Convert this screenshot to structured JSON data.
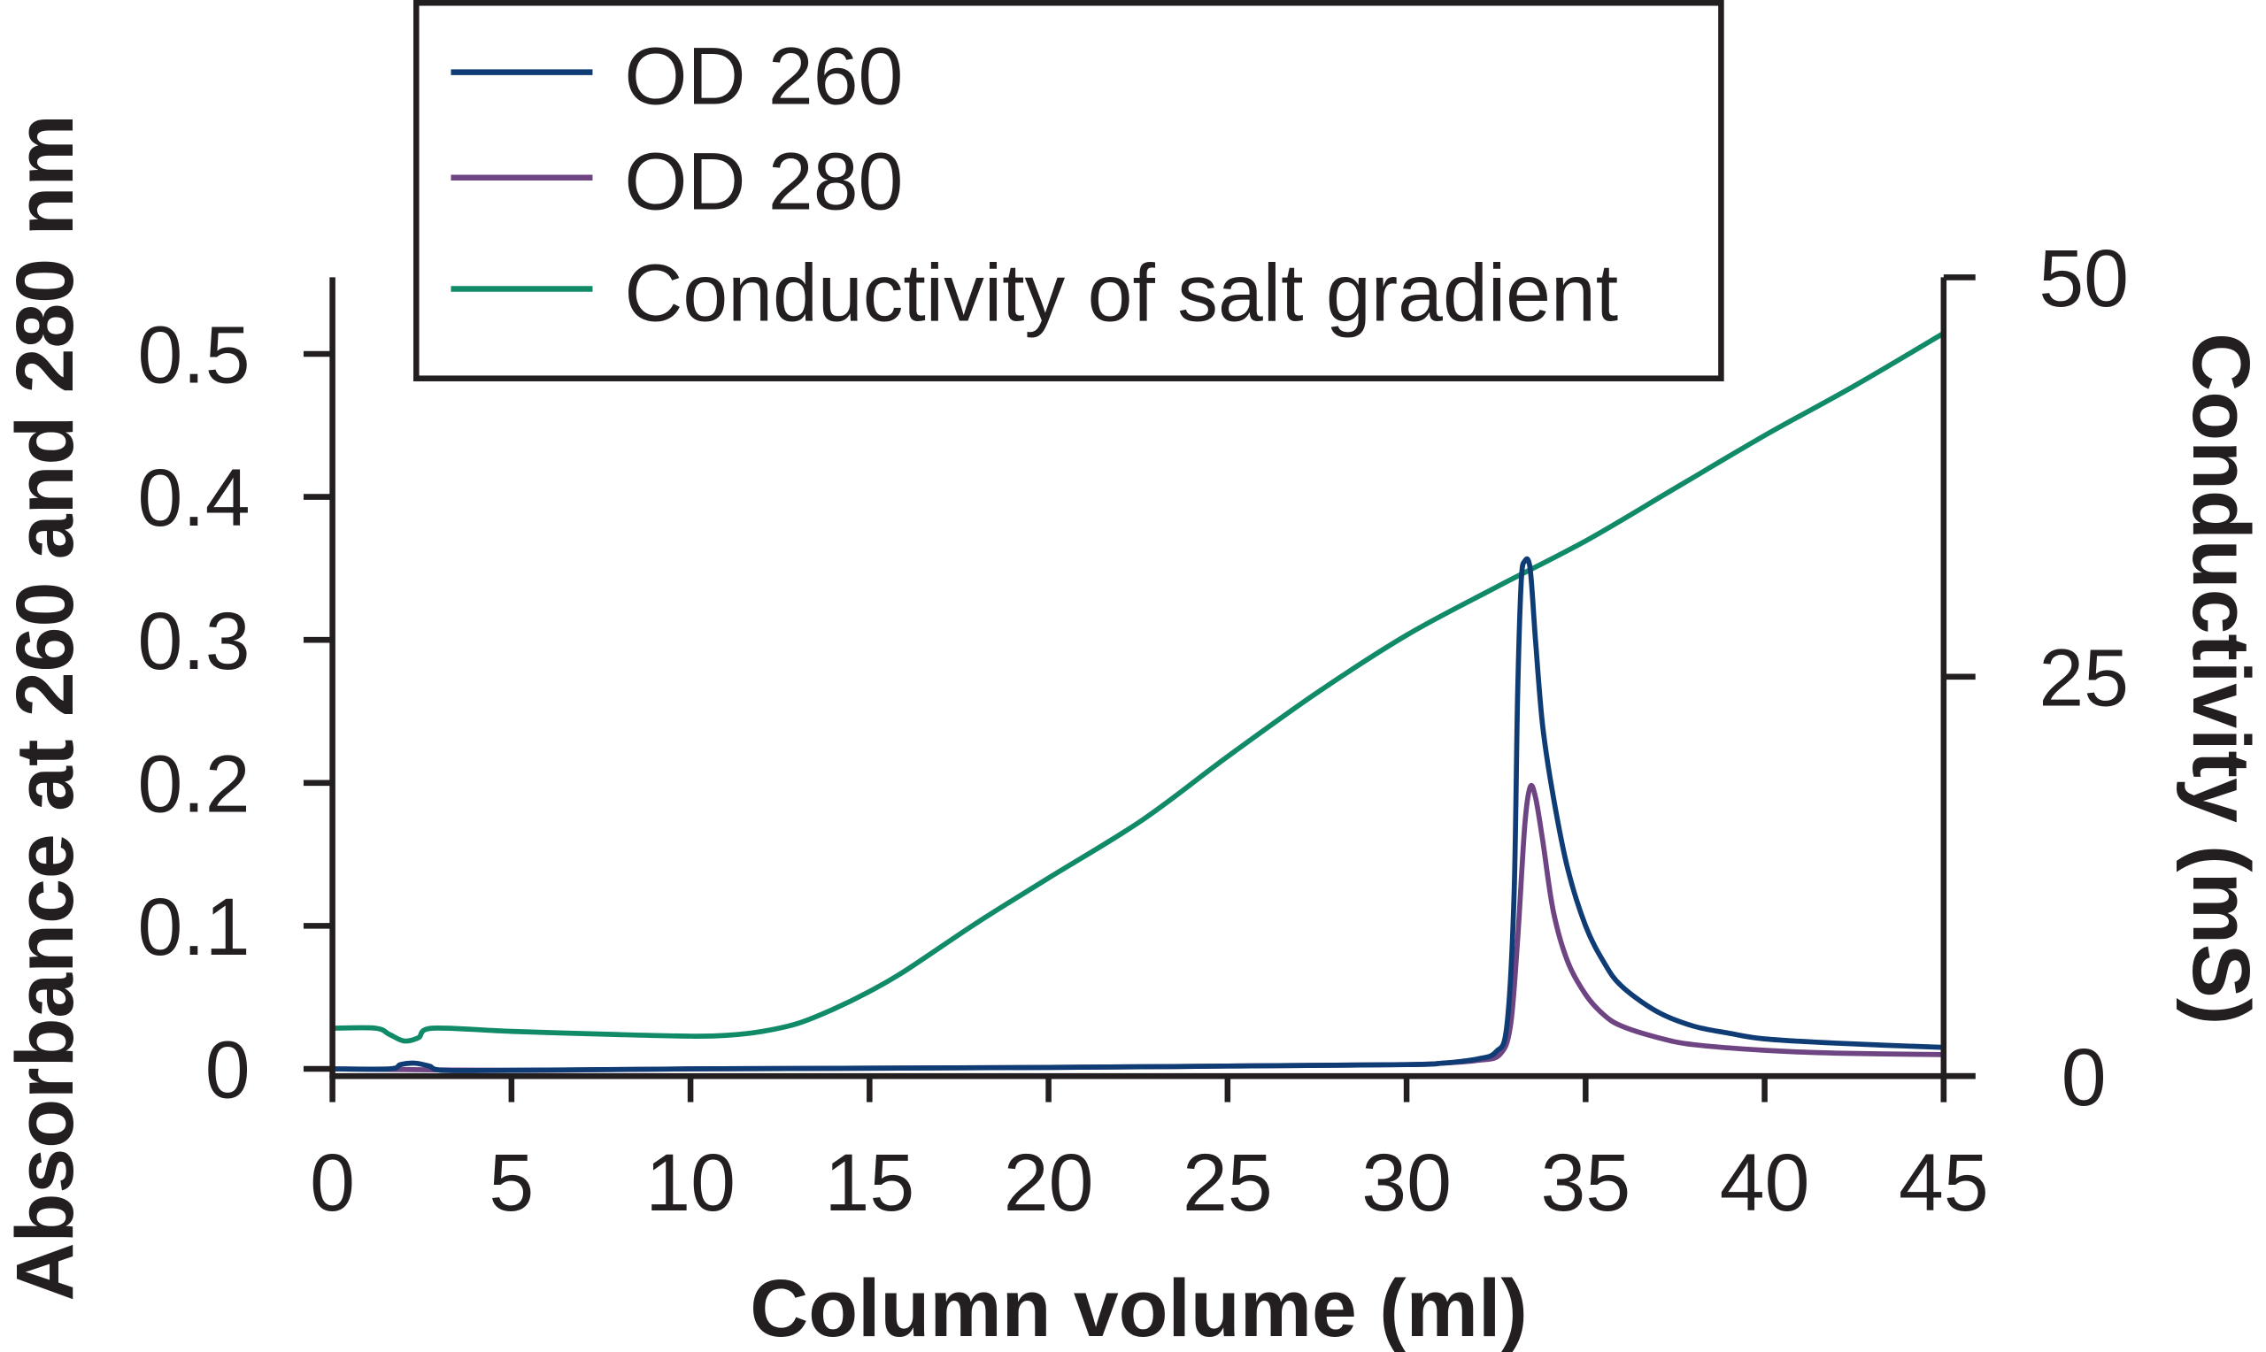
{
  "chart_data": {
    "type": "line",
    "title": "",
    "xlabel": "Column volume (ml)",
    "ylabel": "Absorbance at 260 and 280 nm",
    "y2label": "Conductivity (mS)",
    "xlim": [
      0,
      45
    ],
    "ylim": [
      0,
      0.55
    ],
    "y2lim": [
      0,
      50
    ],
    "xticks": [
      "0",
      "5",
      "10",
      "15",
      "20",
      "25",
      "30",
      "35",
      "40",
      "45"
    ],
    "yticks": [
      "0",
      "0.1",
      "0.2",
      "0.3",
      "0.4",
      "0.5"
    ],
    "y2ticks": [
      "0",
      "25",
      "50"
    ],
    "grid": false,
    "legend_position": "top-center",
    "series": [
      {
        "name": "OD 260",
        "axis": "left",
        "color": "#0f3c74",
        "x": [
          0,
          1.6,
          1.9,
          2.3,
          2.7,
          3.1,
          5,
          10,
          20,
          25,
          30,
          31,
          32,
          32.5,
          32.8,
          33.0,
          33.1,
          33.2,
          33.3,
          33.45,
          33.6,
          33.8,
          34.1,
          34.5,
          35,
          35.5,
          36,
          37,
          38,
          39,
          40,
          42,
          45
        ],
        "y": [
          0,
          0,
          0.003,
          0.004,
          0.002,
          -0.001,
          -0.001,
          0,
          0.001,
          0.002,
          0.003,
          0.004,
          0.007,
          0.012,
          0.03,
          0.12,
          0.26,
          0.34,
          0.355,
          0.35,
          0.3,
          0.24,
          0.19,
          0.14,
          0.1,
          0.075,
          0.058,
          0.04,
          0.03,
          0.025,
          0.021,
          0.018,
          0.015
        ]
      },
      {
        "name": "OD 280",
        "axis": "left",
        "color": "#6e4483",
        "x": [
          0,
          5,
          10,
          20,
          25,
          30,
          31,
          32,
          32.6,
          32.9,
          33.1,
          33.3,
          33.45,
          33.6,
          33.8,
          34.1,
          34.5,
          35,
          35.5,
          36,
          37,
          38,
          40,
          42,
          45
        ],
        "y": [
          0,
          -0.001,
          0,
          0.001,
          0.002,
          0.003,
          0.004,
          0.006,
          0.01,
          0.03,
          0.09,
          0.17,
          0.197,
          0.19,
          0.16,
          0.11,
          0.075,
          0.052,
          0.038,
          0.03,
          0.022,
          0.017,
          0.013,
          0.011,
          0.01
        ]
      },
      {
        "name": "Conductivity of salt gradient",
        "axis": "right",
        "color": "#118a68",
        "x": [
          0,
          1.2,
          1.6,
          2.0,
          2.4,
          2.8,
          5,
          8,
          10,
          11,
          12,
          13,
          14,
          15,
          16,
          18,
          20,
          22.6,
          25,
          27.5,
          30,
          32.5,
          35,
          37.5,
          40,
          42.5,
          45
        ],
        "y": [
          3.0,
          3.0,
          2.6,
          2.2,
          2.4,
          3.0,
          2.8,
          2.6,
          2.5,
          2.55,
          2.8,
          3.3,
          4.2,
          5.3,
          6.6,
          9.6,
          12.4,
          16.0,
          20.0,
          24.0,
          27.6,
          30.6,
          33.5,
          36.8,
          40.1,
          43.2,
          46.5
        ]
      }
    ],
    "legend": [
      "OD 260",
      "OD 280",
      "Conductivity of salt gradient"
    ]
  }
}
